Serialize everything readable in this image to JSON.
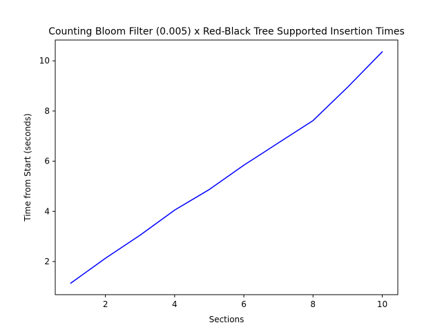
{
  "chart_data": {
    "type": "line",
    "title": "Counting Bloom Filter (0.005) x Red-Black Tree Supported Insertion Times",
    "xlabel": "Sections",
    "ylabel": "Time from Start (seconds)",
    "xlim": [
      0.55,
      10.45
    ],
    "ylim": [
      0.68,
      10.83
    ],
    "x_ticks": [
      2,
      4,
      6,
      8,
      10
    ],
    "y_ticks": [
      2,
      4,
      6,
      8,
      10
    ],
    "grid": false,
    "legend": "none",
    "series": [
      {
        "color": "#0000ff",
        "x": [
          1,
          2,
          3,
          4,
          5,
          6,
          7,
          8,
          9,
          10
        ],
        "y": [
          1.14,
          2.13,
          3.05,
          4.05,
          4.87,
          5.84,
          6.73,
          7.62,
          8.95,
          10.36
        ]
      }
    ]
  }
}
